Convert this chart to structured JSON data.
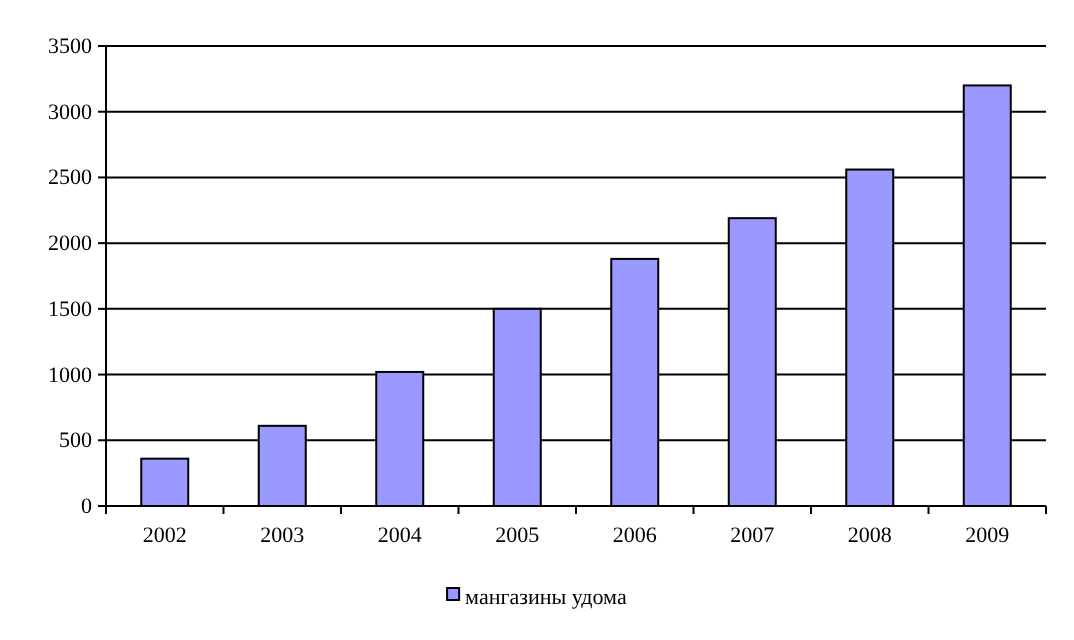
{
  "chart_data": {
    "type": "bar",
    "categories": [
      "2002",
      "2003",
      "2004",
      "2005",
      "2006",
      "2007",
      "2008",
      "2009"
    ],
    "series": [
      {
        "name": "мангазины удома",
        "color": "#9999ff",
        "values": [
          360,
          610,
          1020,
          1500,
          1880,
          2190,
          2560,
          3200
        ]
      }
    ],
    "ylim": [
      0,
      3500
    ],
    "yticks": [
      0,
      500,
      1000,
      1500,
      2000,
      2500,
      3000,
      3500
    ],
    "grid": "y",
    "legend": "bottom"
  }
}
